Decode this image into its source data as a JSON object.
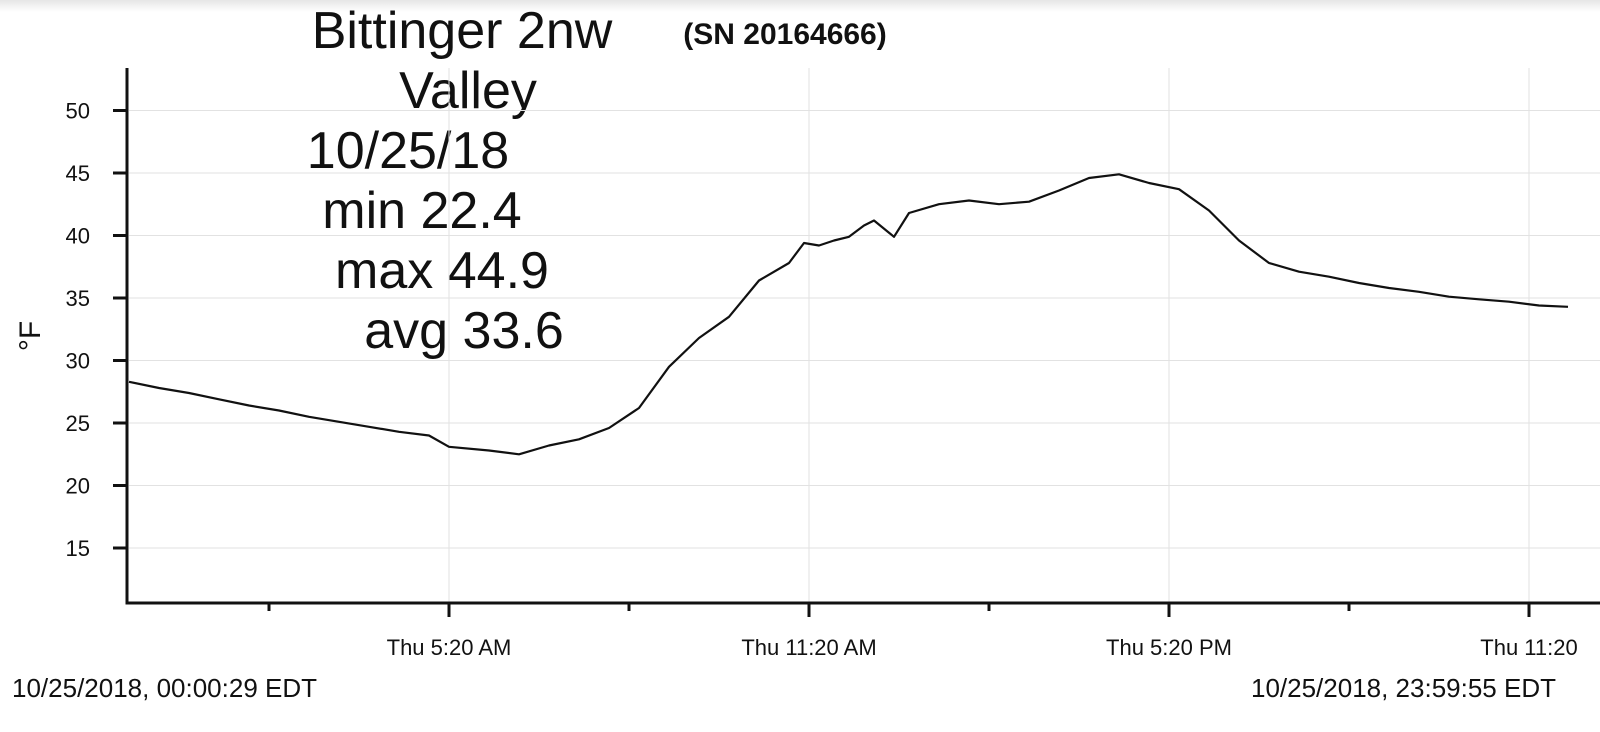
{
  "chart_data": {
    "type": "line",
    "annotations": [
      "Bittinger 2nw",
      "Valley",
      "10/25/18",
      "min 22.4",
      "max 44.9",
      "avg 33.6"
    ],
    "serial": "(SN 20164666)",
    "y_label": "°F",
    "start_label": "10/25/2018, 00:00:29 EDT",
    "end_label": "10/25/2018, 23:59:55 EDT",
    "color": "#111111",
    "grid": true,
    "x": [
      "00:00",
      "00:30",
      "01:00",
      "01:30",
      "02:00",
      "02:30",
      "03:00",
      "03:30",
      "04:00",
      "04:30",
      "05:00",
      "05:20",
      "06:00",
      "06:30",
      "07:00",
      "07:30",
      "08:00",
      "08:30",
      "09:00",
      "09:30",
      "10:00",
      "10:30",
      "11:00",
      "11:15",
      "11:30",
      "11:45",
      "12:00",
      "12:15",
      "12:25",
      "12:45",
      "13:00",
      "13:30",
      "14:00",
      "14:30",
      "15:00",
      "15:30",
      "16:00",
      "16:30",
      "17:00",
      "17:30",
      "18:00",
      "18:30",
      "19:00",
      "19:30",
      "20:00",
      "20:30",
      "21:00",
      "21:30",
      "22:00",
      "22:30",
      "23:00",
      "23:30",
      "23:59"
    ],
    "values": [
      28.3,
      27.8,
      27.4,
      26.9,
      26.4,
      26.0,
      25.5,
      25.1,
      24.7,
      24.3,
      24.0,
      23.1,
      22.8,
      22.5,
      23.2,
      23.7,
      24.6,
      26.2,
      29.5,
      31.8,
      33.5,
      36.4,
      37.8,
      39.4,
      39.2,
      39.6,
      39.9,
      40.8,
      41.2,
      39.9,
      41.8,
      42.5,
      42.8,
      42.5,
      42.7,
      43.6,
      44.6,
      44.9,
      44.2,
      43.7,
      42.0,
      39.6,
      37.8,
      37.1,
      36.7,
      36.2,
      35.8,
      35.5,
      35.1,
      34.9,
      34.7,
      34.4,
      34.3
    ],
    "xlim": [
      "00:00",
      "23:59"
    ],
    "xticks": [
      {
        "value": "05:20",
        "label": "Thu 5:20 AM"
      },
      {
        "value": "11:20",
        "label": "Thu 11:20 AM"
      },
      {
        "value": "17:20",
        "label": "Thu 5:20 PM"
      },
      {
        "value": "23:20",
        "label": "Thu 11:20"
      }
    ],
    "x_minor_ticks": [
      "02:20",
      "08:20",
      "14:20",
      "20:20"
    ],
    "ylim": [
      10.6,
      53.4
    ],
    "yticks": [
      15,
      20,
      25,
      30,
      35,
      40,
      45,
      50
    ]
  }
}
